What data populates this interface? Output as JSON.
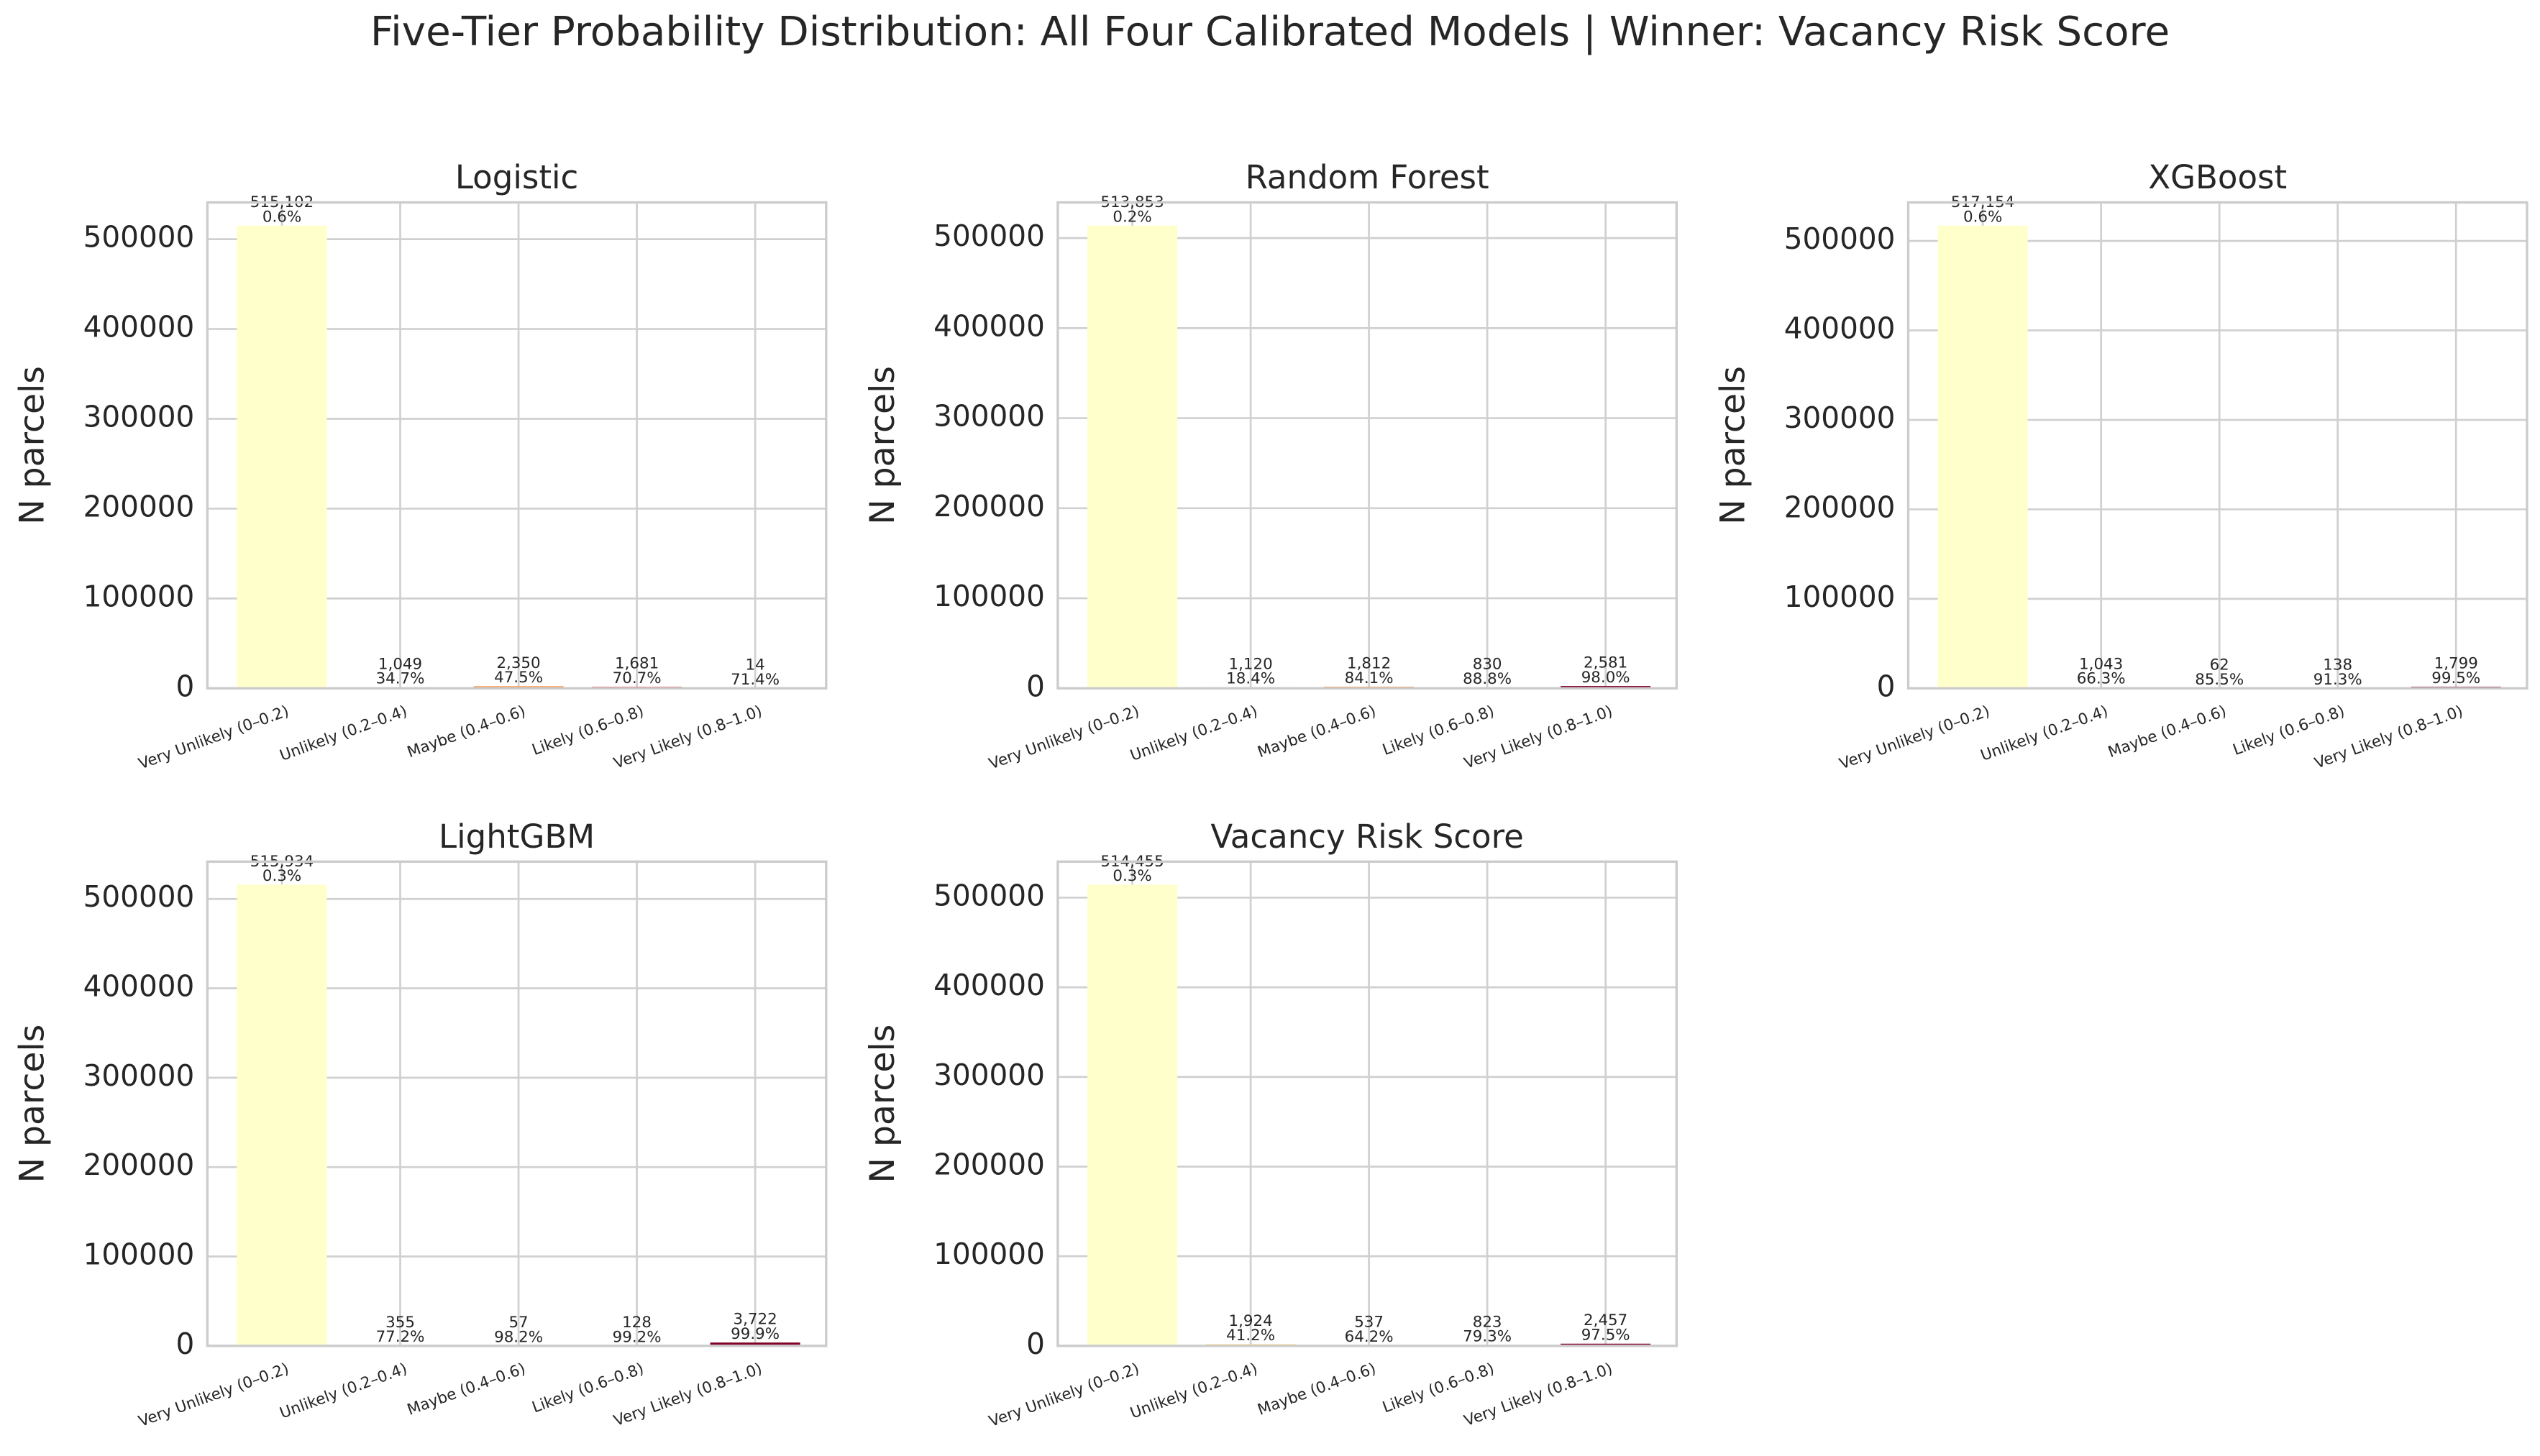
{
  "title": "Five-Tier Probability Distribution: All Four Calibrated Models | Winner: Vacancy Risk Score",
  "chart_data": [
    {
      "type": "bar",
      "title": "Logistic",
      "ylabel": "N parcels",
      "categories": [
        "Very Unlikely (0–0.2)",
        "Unlikely (0.2–0.4)",
        "Maybe (0.4–0.6)",
        "Likely (0.6–0.8)",
        "Very Likely (0.8–1.0)"
      ],
      "values": [
        515102,
        1049,
        2350,
        1681,
        14
      ],
      "value_labels": [
        "515,102",
        "1,049",
        "2,350",
        "1,681",
        "14"
      ],
      "rate_labels": [
        "0.6%",
        "34.7%",
        "47.5%",
        "70.7%",
        "71.4%"
      ],
      "colors": [
        "#ffffcc",
        "#fed976",
        "#fd8d3c",
        "#e31a1c",
        "#800026"
      ],
      "ylim": [
        0,
        540857
      ],
      "yticks": [
        0,
        100000,
        200000,
        300000,
        400000,
        500000
      ],
      "grid": true
    },
    {
      "type": "bar",
      "title": "Random Forest",
      "ylabel": "N parcels",
      "categories": [
        "Very Unlikely (0–0.2)",
        "Unlikely (0.2–0.4)",
        "Maybe (0.4–0.6)",
        "Likely (0.6–0.8)",
        "Very Likely (0.8–1.0)"
      ],
      "values": [
        513853,
        1120,
        1812,
        830,
        2581
      ],
      "value_labels": [
        "513,853",
        "1,120",
        "1,812",
        "830",
        "2,581"
      ],
      "rate_labels": [
        "0.2%",
        "18.4%",
        "84.1%",
        "88.8%",
        "98.0%"
      ],
      "colors": [
        "#ffffcc",
        "#fed976",
        "#fd8d3c",
        "#e31a1c",
        "#800026"
      ],
      "ylim": [
        0,
        539546
      ],
      "yticks": [
        0,
        100000,
        200000,
        300000,
        400000,
        500000
      ],
      "grid": true
    },
    {
      "type": "bar",
      "title": "XGBoost",
      "ylabel": "N parcels",
      "categories": [
        "Very Unlikely (0–0.2)",
        "Unlikely (0.2–0.4)",
        "Maybe (0.4–0.6)",
        "Likely (0.6–0.8)",
        "Very Likely (0.8–1.0)"
      ],
      "values": [
        517154,
        1043,
        62,
        138,
        1799
      ],
      "value_labels": [
        "517,154",
        "1,043",
        "62",
        "138",
        "1,799"
      ],
      "rate_labels": [
        "0.6%",
        "66.3%",
        "85.5%",
        "91.3%",
        "99.5%"
      ],
      "colors": [
        "#ffffcc",
        "#fed976",
        "#fd8d3c",
        "#e31a1c",
        "#800026"
      ],
      "ylim": [
        0,
        543012
      ],
      "yticks": [
        0,
        100000,
        200000,
        300000,
        400000,
        500000
      ],
      "grid": true
    },
    {
      "type": "bar",
      "title": "LightGBM",
      "ylabel": "N parcels",
      "categories": [
        "Very Unlikely (0–0.2)",
        "Unlikely (0.2–0.4)",
        "Maybe (0.4–0.6)",
        "Likely (0.6–0.8)",
        "Very Likely (0.8–1.0)"
      ],
      "values": [
        515934,
        355,
        57,
        128,
        3722
      ],
      "value_labels": [
        "515,934",
        "355",
        "57",
        "128",
        "3,722"
      ],
      "rate_labels": [
        "0.3%",
        "77.2%",
        "98.2%",
        "99.2%",
        "99.9%"
      ],
      "colors": [
        "#ffffcc",
        "#fed976",
        "#fd8d3c",
        "#e31a1c",
        "#800026"
      ],
      "ylim": [
        0,
        541731
      ],
      "yticks": [
        0,
        100000,
        200000,
        300000,
        400000,
        500000
      ],
      "grid": true
    },
    {
      "type": "bar",
      "title": "Vacancy Risk Score",
      "ylabel": "N parcels",
      "categories": [
        "Very Unlikely (0–0.2)",
        "Unlikely (0.2–0.4)",
        "Maybe (0.4–0.6)",
        "Likely (0.6–0.8)",
        "Very Likely (0.8–1.0)"
      ],
      "values": [
        514455,
        1924,
        537,
        823,
        2457
      ],
      "value_labels": [
        "514,455",
        "1,924",
        "537",
        "823",
        "2,457"
      ],
      "rate_labels": [
        "0.3%",
        "41.2%",
        "64.2%",
        "79.3%",
        "97.5%"
      ],
      "colors": [
        "#ffffcc",
        "#fed976",
        "#fd8d3c",
        "#e31a1c",
        "#800026"
      ],
      "ylim": [
        0,
        540178
      ],
      "yticks": [
        0,
        100000,
        200000,
        300000,
        400000,
        500000
      ],
      "grid": true
    }
  ]
}
